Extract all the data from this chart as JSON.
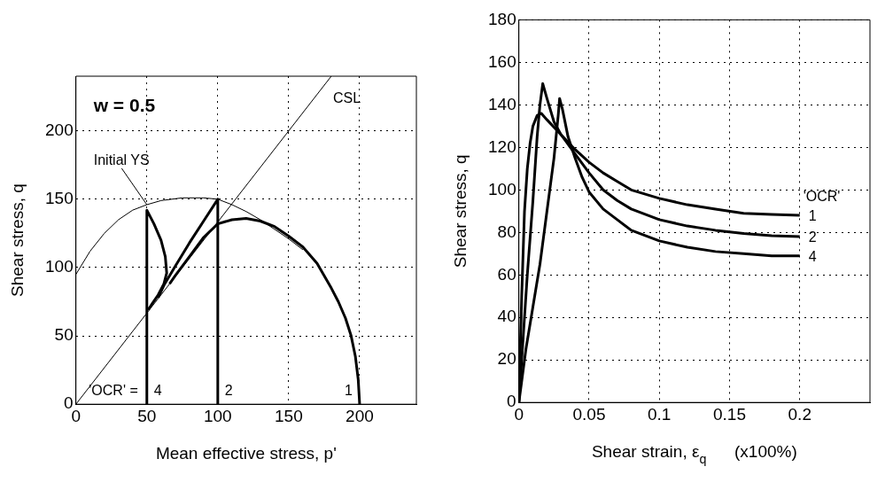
{
  "chart_data": [
    {
      "type": "line",
      "xlabel": "Mean effective stress, p'",
      "ylabel": "Shear stress, q",
      "xlim": [
        0,
        240
      ],
      "ylim": [
        0,
        240
      ],
      "xticks": [
        0,
        50,
        100,
        150,
        200
      ],
      "yticks": [
        0,
        50,
        100,
        150,
        200
      ],
      "grid": true,
      "legend": false,
      "marker": "none",
      "line_style": "solid",
      "annotations": [
        "w = 0.5",
        "'OCR' ="
      ],
      "series": [
        {
          "name": "CSL",
          "color": "#000000",
          "x": [
            0,
            180
          ],
          "values": [
            0,
            240
          ]
        },
        {
          "name": "Initial YS",
          "color": "#000000",
          "x": [
            0,
            10,
            20,
            30,
            40,
            50,
            60,
            75,
            90,
            100,
            110,
            120,
            130,
            140,
            150,
            160
          ],
          "values": [
            95,
            112,
            125,
            135,
            142,
            146,
            149,
            151,
            151,
            150,
            146,
            141,
            135,
            128,
            121,
            113
          ]
        },
        {
          "name": "4",
          "color": "#000000",
          "x": [
            50,
            50,
            55,
            60,
            63,
            64,
            62,
            58,
            54,
            51
          ],
          "values": [
            0,
            142,
            132,
            120,
            108,
            96,
            88,
            80,
            74,
            69
          ]
        },
        {
          "name": "2",
          "color": "#000000",
          "x": [
            100,
            100,
            90,
            80,
            70,
            62,
            58
          ],
          "values": [
            0,
            150,
            134,
            118,
            101,
            87,
            78
          ]
        },
        {
          "name": "1",
          "color": "#000000",
          "x": [
            200,
            199,
            197,
            194,
            190,
            185,
            180,
            170,
            160,
            150,
            140,
            130,
            120,
            110,
            100,
            90,
            80,
            70,
            66
          ],
          "values": [
            0,
            18,
            35,
            50,
            63,
            75,
            85,
            103,
            115,
            123,
            130,
            134,
            136,
            135,
            132,
            122,
            108,
            94,
            88
          ]
        }
      ]
    },
    {
      "type": "line",
      "xlabel": "Shear strain, ε$_{q}$      (x100%)",
      "ylabel": "Shear stress, q",
      "xlim": [
        0,
        0.25
      ],
      "ylim": [
        0,
        180
      ],
      "xticks": [
        0,
        0.05,
        0.1,
        0.15,
        0.2
      ],
      "yticks": [
        0,
        20,
        40,
        60,
        80,
        100,
        120,
        140,
        160,
        180
      ],
      "grid": true,
      "legend": false,
      "marker": "none",
      "line_style": "solid",
      "annotations": [
        "'OCR'"
      ],
      "series": [
        {
          "name": "1",
          "color": "#000000",
          "x": [
            0,
            0.002,
            0.004,
            0.006,
            0.008,
            0.01,
            0.013,
            0.016,
            0.02,
            0.03,
            0.04,
            0.05,
            0.06,
            0.07,
            0.08,
            0.1,
            0.12,
            0.14,
            0.16,
            0.18,
            0.2
          ],
          "values": [
            0,
            50,
            90,
            110,
            122,
            130,
            135,
            136,
            133,
            126,
            119,
            113,
            108,
            104,
            100,
            96,
            93,
            91,
            89,
            88.5,
            88
          ]
        },
        {
          "name": "2",
          "color": "#000000",
          "x": [
            0,
            0.003,
            0.006,
            0.01,
            0.013,
            0.015,
            0.017,
            0.02,
            0.025,
            0.03,
            0.04,
            0.05,
            0.06,
            0.07,
            0.08,
            0.1,
            0.12,
            0.14,
            0.16,
            0.18,
            0.2
          ],
          "values": [
            0,
            30,
            60,
            95,
            125,
            140,
            150,
            143,
            132,
            126,
            117,
            108,
            100,
            95,
            91,
            86,
            83,
            81,
            79.5,
            78.5,
            78
          ]
        },
        {
          "name": "4",
          "color": "#000000",
          "x": [
            0,
            0.005,
            0.01,
            0.015,
            0.02,
            0.025,
            0.028,
            0.029,
            0.031,
            0.035,
            0.04,
            0.045,
            0.05,
            0.06,
            0.07,
            0.08,
            0.1,
            0.12,
            0.14,
            0.16,
            0.18,
            0.2
          ],
          "values": [
            0,
            25,
            45,
            65,
            90,
            115,
            135,
            143,
            138,
            125,
            115,
            106,
            99,
            91,
            86,
            81,
            76,
            73,
            71,
            70,
            69,
            69
          ]
        }
      ]
    }
  ]
}
